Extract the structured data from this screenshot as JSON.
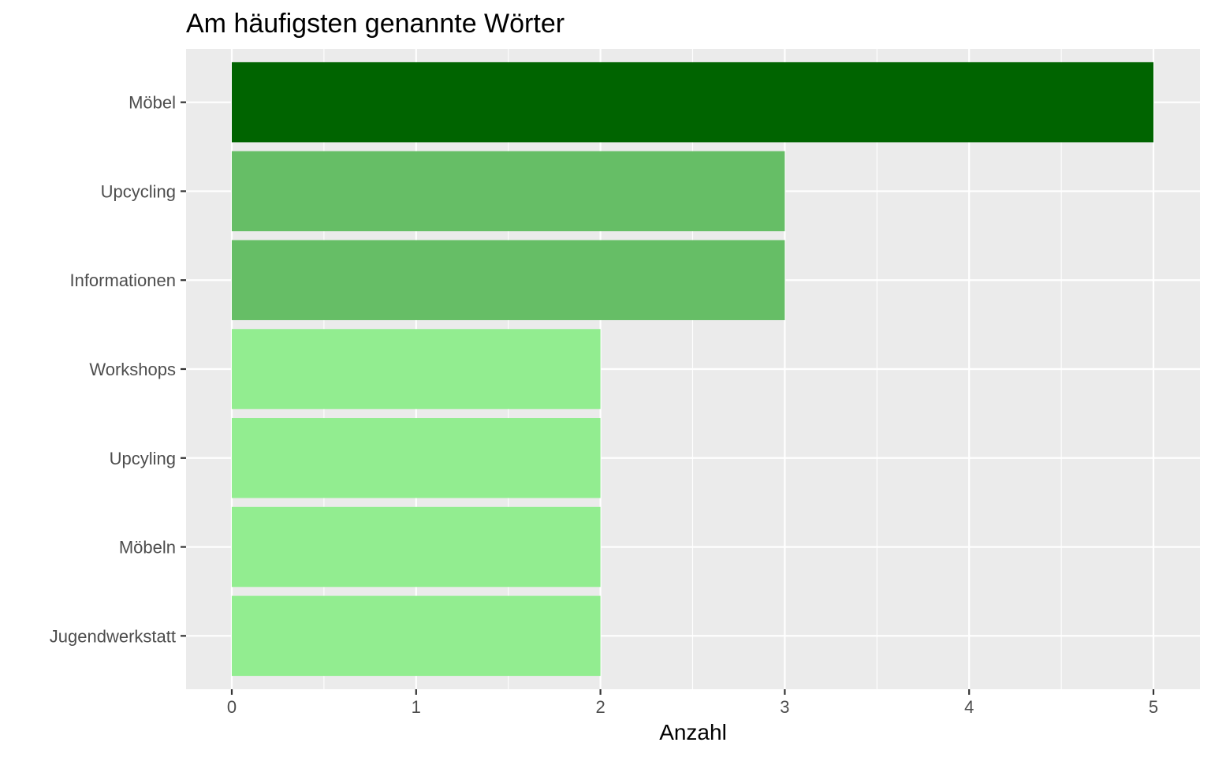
{
  "chart_data": {
    "type": "bar",
    "orientation": "horizontal",
    "title": "Am häufigsten genannte Wörter",
    "xlabel": "Anzahl",
    "ylabel": "",
    "xlim": [
      0,
      5
    ],
    "x_ticks": [
      0,
      1,
      2,
      3,
      4,
      5
    ],
    "grid": true,
    "legend": "none",
    "categories": [
      "Möbel",
      "Upcycling",
      "Informationen",
      "Workshops",
      "Upcyling",
      "Möbeln",
      "Jugendwerkstatt"
    ],
    "values": [
      5,
      3,
      3,
      2,
      2,
      2,
      2
    ],
    "value_colors": {
      "5": "#006400",
      "3": "#66BE66",
      "2": "#92ED90"
    },
    "panel_background": "#EBEBEB",
    "grid_color": "#FFFFFF"
  }
}
